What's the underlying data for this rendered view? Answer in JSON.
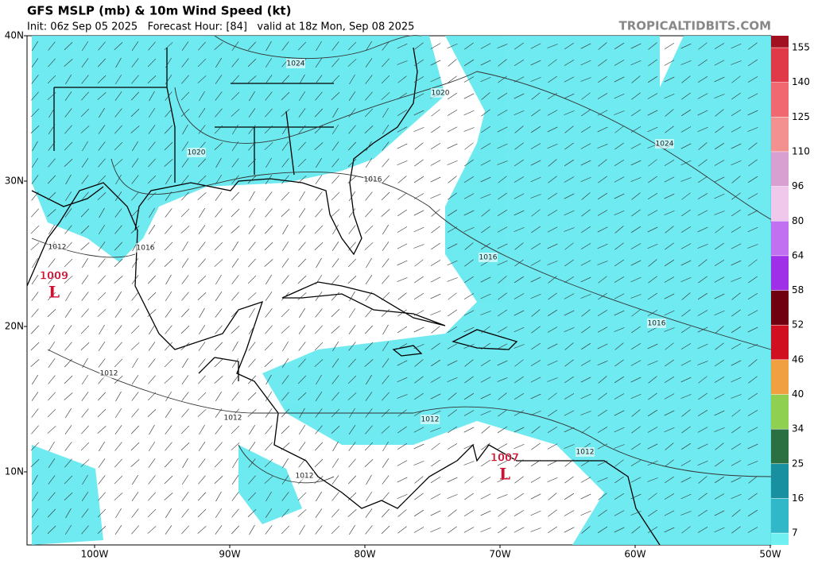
{
  "header": {
    "title": "GFS MSLP (mb) & 10m Wind Speed (kt)",
    "subtitle": "Init: 06z Sep 05 2025   Forecast Hour: [84]   valid at 18z Mon, Sep 08 2025",
    "credit": "TROPICALTIDBITS.COM"
  },
  "map": {
    "lat_labels": [
      "40N",
      "30N",
      "20N",
      "10N"
    ],
    "lon_labels": [
      "100W",
      "90W",
      "80W",
      "70W",
      "60W",
      "50W"
    ],
    "isobar_labels": [
      "1024",
      "1020",
      "1024",
      "1020",
      "1016",
      "1016",
      "1012",
      "1016",
      "1016",
      "1012",
      "1012",
      "1012",
      "1012",
      "1012"
    ],
    "lows": [
      {
        "pressure": "1009",
        "symbol": "L"
      },
      {
        "pressure": "1007",
        "symbol": "L"
      }
    ]
  },
  "legend": {
    "ticks": [
      155,
      140,
      125,
      110,
      96,
      80,
      64,
      58,
      52,
      46,
      40,
      34,
      25,
      16,
      7
    ]
  }
}
